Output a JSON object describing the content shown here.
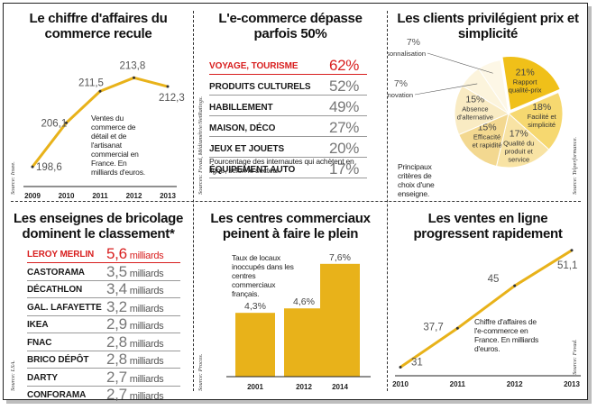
{
  "panels": {
    "revenue": {
      "title": "Le chiffre d'affaires du commerce recule",
      "source": "Source: Insee.",
      "note": "Ventes du commerce de détail et de l'artisanat commercial en France. En milliards d'euros.",
      "color": "#e8b21a"
    },
    "ecommerce": {
      "title": "L'e-commerce dépasse parfois 50%",
      "source": "Sources: Fevad, Médiamétrie/NetRatings.",
      "note": "Pourcentage des internautes qui achètent en ligne, selon le secteur.",
      "rows": [
        {
          "label": "VOYAGE, TOURISME",
          "value": "62%",
          "highlight": true
        },
        {
          "label": "PRODUITS CULTURELS",
          "value": "52%",
          "highlight": false
        },
        {
          "label": "HABILLEMENT",
          "value": "49%",
          "highlight": false
        },
        {
          "label": "MAISON, DÉCO",
          "value": "27%",
          "highlight": false
        },
        {
          "label": "JEUX ET JOUETS",
          "value": "20%",
          "highlight": false
        },
        {
          "label": "ÉQUIPEMENT AUTO",
          "value": "17%",
          "highlight": false
        }
      ],
      "highlight_color": "#d81e1e"
    },
    "clients": {
      "title": "Les clients privilégient prix et simplicité",
      "source": "Source: Telperformance.",
      "note": "Principaux critères de choix d'une enseigne."
    },
    "diy": {
      "title": "Les enseignes de bricolage dominent le classement*",
      "source": "Source: LSA.",
      "rows": [
        {
          "label": "LEROY MERLIN",
          "value": "5,6",
          "unit": "milliards",
          "highlight": true
        },
        {
          "label": "CASTORAMA",
          "value": "3,5",
          "unit": "milliards",
          "highlight": false
        },
        {
          "label": "DÉCATHLON",
          "value": "3,4",
          "unit": "milliards",
          "highlight": false
        },
        {
          "label": "GAL. LAFAYETTE",
          "value": "3,2",
          "unit": "milliards",
          "highlight": false
        },
        {
          "label": "IKEA",
          "value": "2,9",
          "unit": "milliards",
          "highlight": false
        },
        {
          "label": "FNAC",
          "value": "2,8",
          "unit": "milliards",
          "highlight": false
        },
        {
          "label": "BRICO DÉPÔT",
          "value": "2,8",
          "unit": "milliards",
          "highlight": false
        },
        {
          "label": "DARTY",
          "value": "2,7",
          "unit": "milliards",
          "highlight": false
        },
        {
          "label": "CONFORAMA",
          "value": "2,7",
          "unit": "milliards",
          "highlight": false
        }
      ]
    },
    "malls": {
      "title": "Les centres commerciaux peinent à faire le plein",
      "source": "Source: Procos.",
      "note": "Taux de locaux inoccupés dans les centres commerciaux français."
    },
    "online": {
      "title": "Les ventes en ligne progressent rapidement",
      "source": "Source: Fevad.",
      "note": "Chiffre d'affaires de l'e-commerce en France. En milliards d'euros."
    }
  },
  "chart_data": [
    {
      "id": "revenue",
      "type": "line",
      "title": "Le chiffre d'affaires du commerce recule",
      "x": [
        "2009",
        "2010",
        "2011",
        "2012",
        "2013"
      ],
      "values": [
        198.6,
        206.1,
        211.5,
        213.8,
        212.3
      ],
      "labels": [
        "198,6",
        "206,1",
        "211,5",
        "213,8",
        "212,3"
      ],
      "ylabel": "",
      "xlabel": "",
      "color": "#e8b21a"
    },
    {
      "id": "clients",
      "type": "pie",
      "title": "Les clients privilégient prix et simplicité",
      "slices": [
        {
          "label": "Rapport qualité-prix",
          "value": 21,
          "pct": "21%",
          "color": "#f0c019"
        },
        {
          "label": "Facilité et simplicité",
          "value": 18,
          "pct": "18%",
          "color": "#f6d870"
        },
        {
          "label": "Qualité du produit et service",
          "value": 17,
          "pct": "17%",
          "color": "#f8e3a4"
        },
        {
          "label": "Efficacité et rapidité",
          "value": 15,
          "pct": "15%",
          "color": "#f3d890"
        },
        {
          "label": "Absence d'alternative",
          "value": 15,
          "pct": "15%",
          "color": "#f9ebc3"
        },
        {
          "label": "Innovation",
          "value": 7,
          "pct": "7%",
          "color": "#fcf4dc"
        },
        {
          "label": "Personnalisation",
          "value": 7,
          "pct": "7%",
          "color": "#fdf7e6"
        }
      ]
    },
    {
      "id": "malls",
      "type": "bar",
      "title": "Les centres commerciaux peinent à faire le plein",
      "categories": [
        "2001",
        "2012",
        "2014"
      ],
      "values": [
        4.3,
        4.6,
        7.6
      ],
      "labels": [
        "4,3%",
        "4,6%",
        "7,6%"
      ],
      "ylim": [
        0,
        8.5
      ],
      "color": "#e8b21a"
    },
    {
      "id": "online",
      "type": "line",
      "title": "Les ventes en ligne progressent rapidement",
      "x": [
        "2010",
        "2011",
        "2012",
        "2013"
      ],
      "values": [
        31,
        37.7,
        45,
        51.1
      ],
      "labels": [
        "31",
        "37,7",
        "45",
        "51,1"
      ],
      "color": "#e8b21a"
    }
  ]
}
